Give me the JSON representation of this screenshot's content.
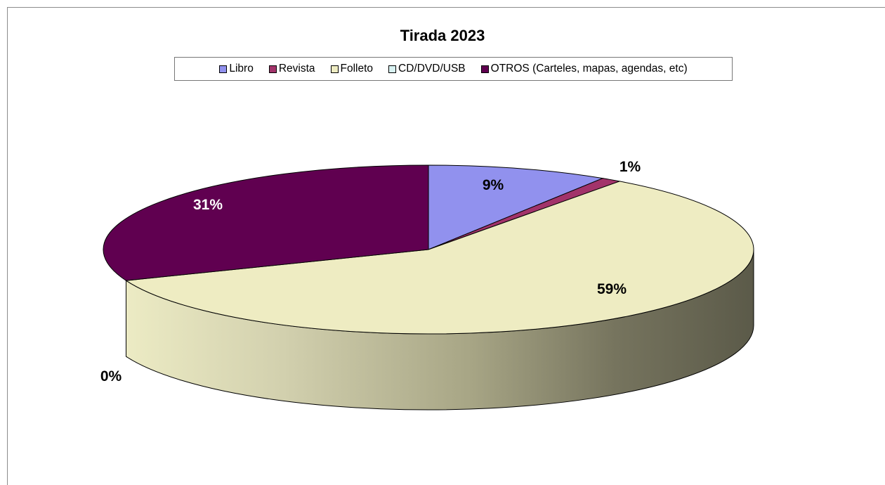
{
  "chart_data": {
    "type": "pie",
    "title": "Tirada 2023",
    "legend_position": "top",
    "categories": [
      "Libro",
      "Revista",
      "Folleto",
      "CD/DVD/USB",
      "OTROS (Carteles, mapas, agendas, etc)"
    ],
    "values": [
      9,
      1,
      59,
      0,
      31
    ],
    "labels": [
      "9%",
      "1%",
      "59%",
      "0%",
      "31%"
    ],
    "colors": [
      "#9191ee",
      "#a2336a",
      "#eeecc2",
      "#d8f2f2",
      "#600050"
    ]
  }
}
